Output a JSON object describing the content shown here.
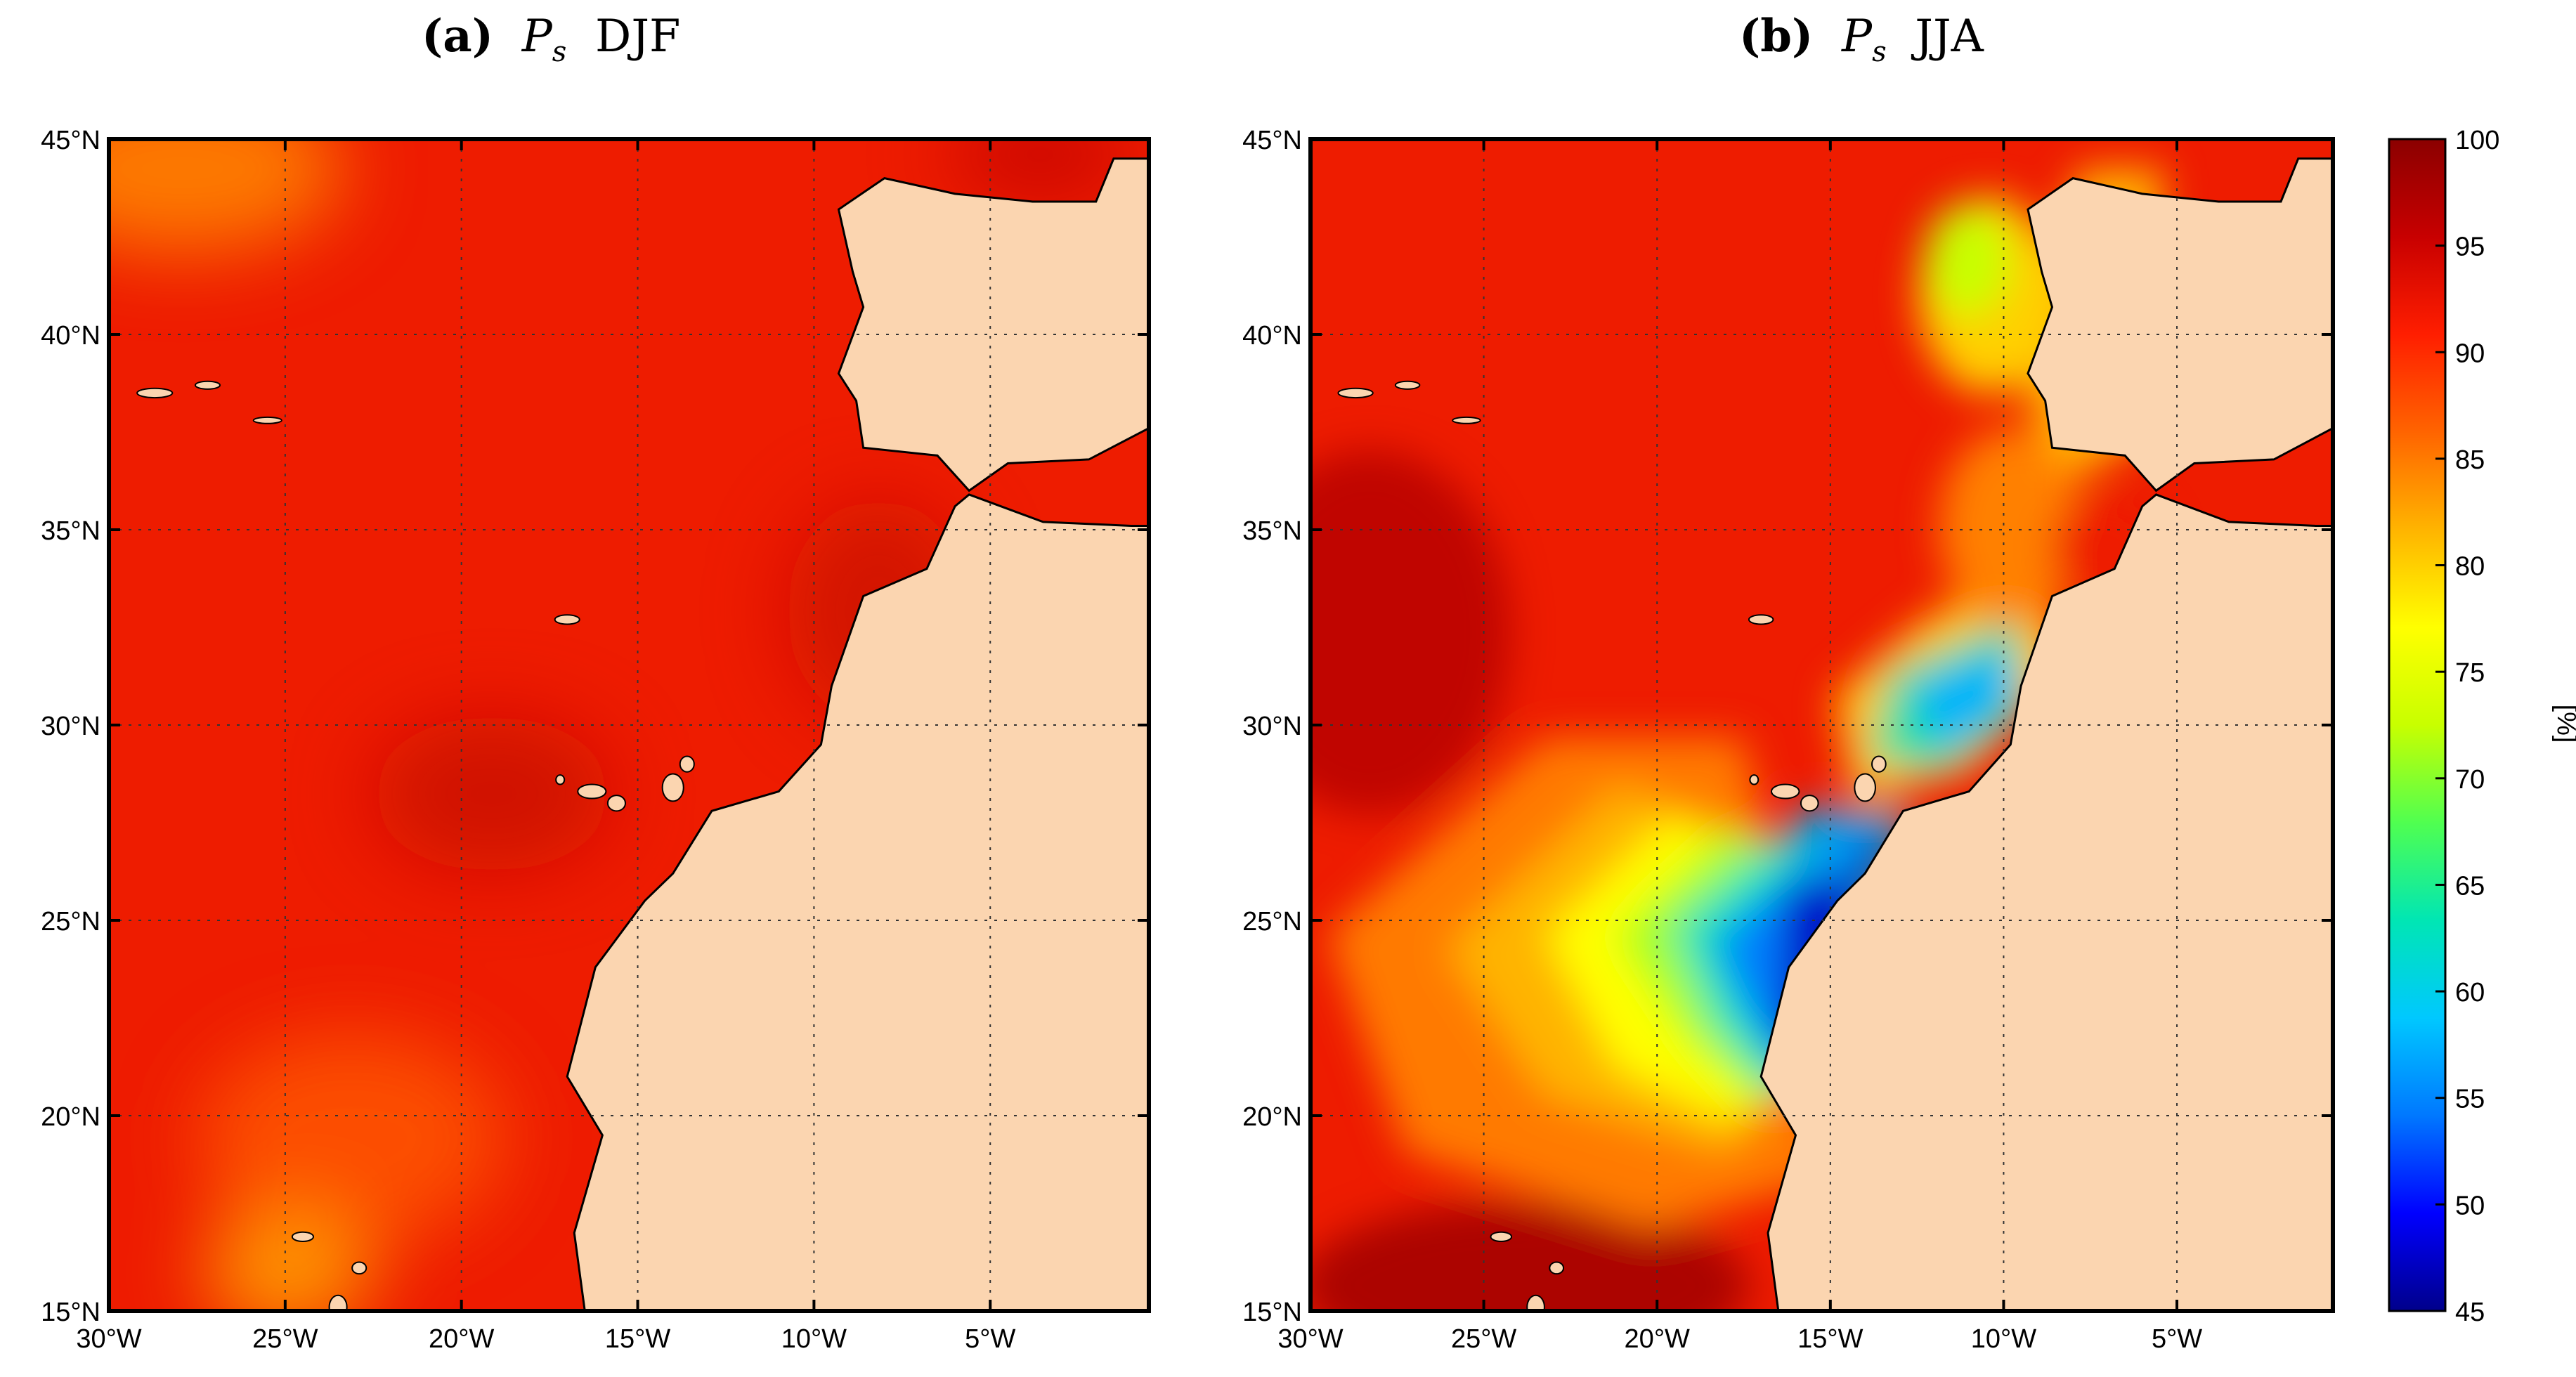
{
  "panels": [
    {
      "id": "a",
      "letter": "(a)",
      "var_main": "P",
      "var_sub": "s",
      "season": "DJF"
    },
    {
      "id": "b",
      "letter": "(b)",
      "var_main": "P",
      "var_sub": "s",
      "season": "JJA"
    }
  ],
  "map": {
    "lon_ticks": [
      -30,
      -25,
      -20,
      -15,
      -10,
      -5
    ],
    "lon_tick_labels": [
      "30°W",
      "25°W",
      "20°W",
      "15°W",
      "10°W",
      "5°W"
    ],
    "lat_ticks": [
      15,
      20,
      25,
      30,
      35,
      40,
      45
    ],
    "lat_tick_labels": [
      "15°N",
      "20°N",
      "25°N",
      "30°N",
      "35°N",
      "40°N",
      "45°N"
    ],
    "lon_range": [
      -30,
      -0.5
    ],
    "lat_range": [
      15,
      45
    ]
  },
  "colorbar": {
    "min": 45,
    "max": 100,
    "tick_labels": [
      "45",
      "50",
      "55",
      "60",
      "65",
      "70",
      "75",
      "80",
      "85",
      "90",
      "95",
      "100"
    ],
    "unit_label": "[%]",
    "colors": [
      "#00008b",
      "#0000ff",
      "#0078ff",
      "#00c8ff",
      "#00e6b4",
      "#50ff50",
      "#c8ff00",
      "#ffff00",
      "#ffb400",
      "#ff6400",
      "#ff1e00",
      "#c80000",
      "#8b0000"
    ]
  },
  "colors": {
    "land": "#fbd5b0",
    "ocean_base": "#ee1c00",
    "coast": "#000000"
  }
}
